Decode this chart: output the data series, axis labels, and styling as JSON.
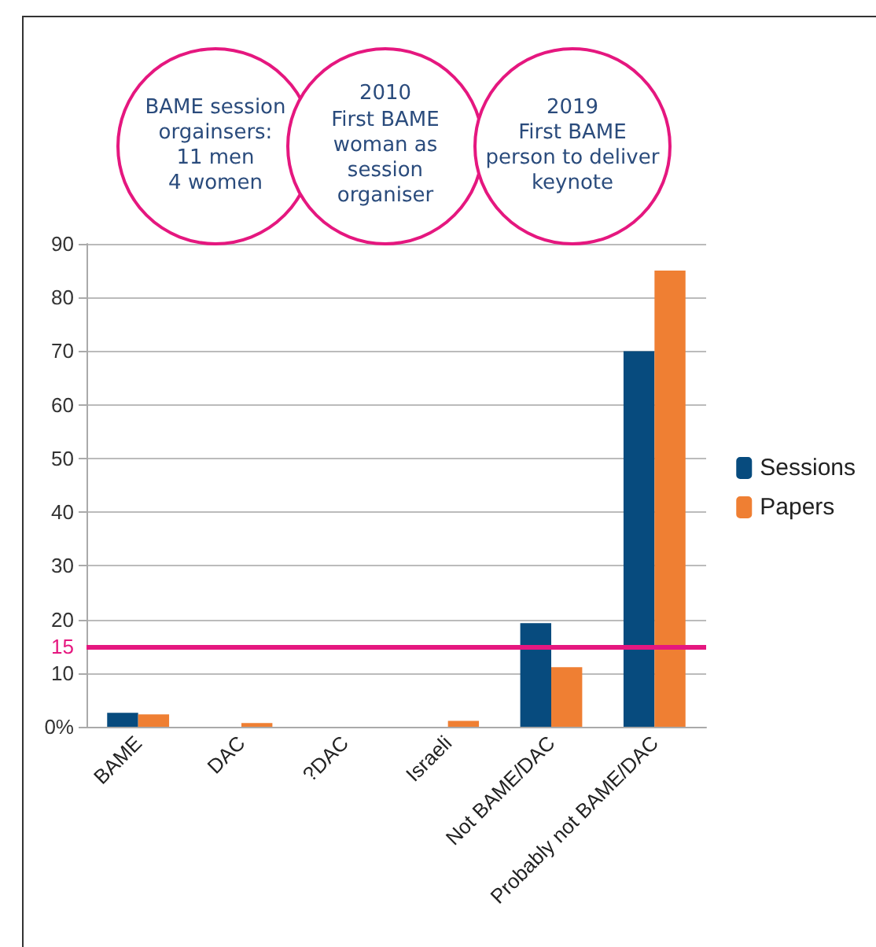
{
  "chart_data": {
    "type": "bar",
    "categories": [
      "BAME",
      "DAC",
      "?DAC",
      "Israeli",
      "Not BAME/DAC",
      "Probably not BAME/DAC"
    ],
    "series": [
      {
        "name": "Sessions",
        "color": "#074b7e",
        "values": [
          2.6,
          0,
          0,
          0,
          19.3,
          70
        ]
      },
      {
        "name": "Papers",
        "color": "#ef7f33",
        "values": [
          2.3,
          0.7,
          0,
          1.1,
          11.1,
          85
        ]
      }
    ],
    "ylim": [
      0,
      90
    ],
    "yticks": [
      {
        "value": 0,
        "label": "0%"
      },
      10,
      20,
      30,
      40,
      50,
      60,
      70,
      80,
      90
    ],
    "grid": "y",
    "legend": "right",
    "ref_lines": [
      {
        "axis": "y",
        "value": 15,
        "label": "15",
        "color": "#e5177f"
      }
    ],
    "annotations": [
      "BAME session orgainsers:\n11 men\n4 women",
      "2010\nFirst BAME\nwoman as\nsession\norganiser",
      "2019\nFirst BAME\nperson to deliver\nkeynote"
    ]
  }
}
